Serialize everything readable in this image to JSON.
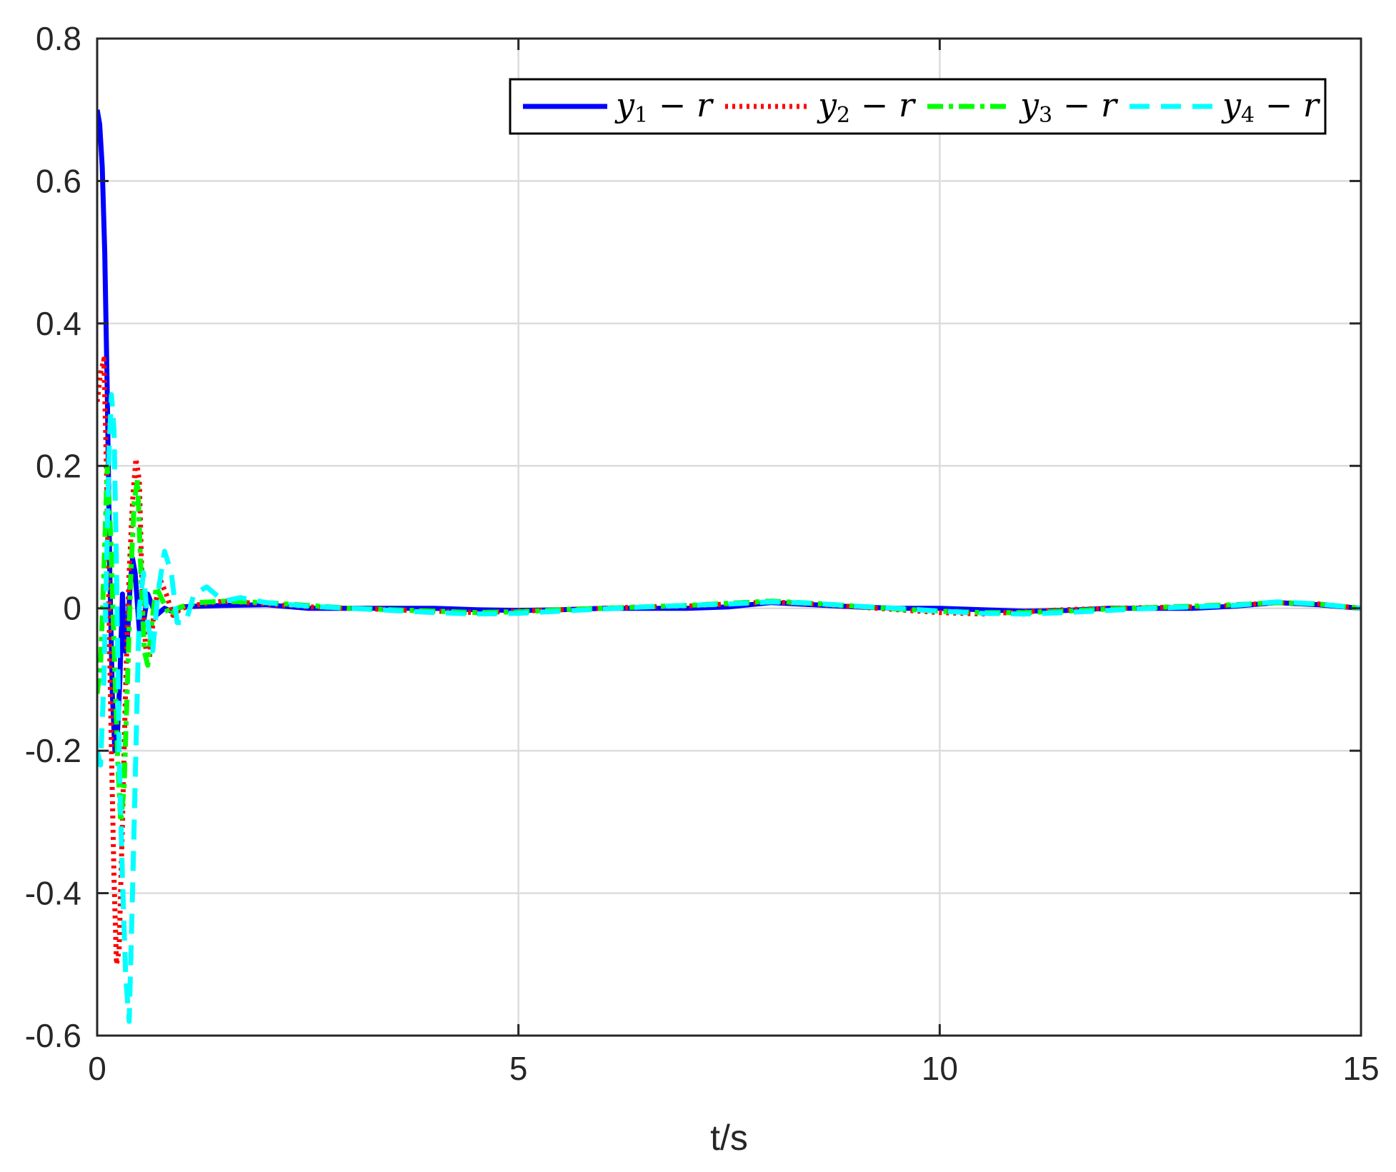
{
  "chart_data": {
    "type": "line",
    "title": "",
    "xlabel": "t/s",
    "ylabel": "",
    "xlim": [
      0,
      15
    ],
    "ylim": [
      -0.6,
      0.8
    ],
    "xticks": [
      0,
      5,
      10,
      15
    ],
    "xtick_labels": [
      "0",
      "5",
      "10",
      "15"
    ],
    "yticks": [
      -0.6,
      -0.4,
      -0.2,
      0,
      0.2,
      0.4,
      0.6,
      0.8
    ],
    "ytick_labels": [
      "-0.6",
      "-0.4",
      "-0.2",
      "0",
      "0.2",
      "0.4",
      "0.6",
      "0.8"
    ],
    "grid": true,
    "legend_position": "top-right",
    "legend_orientation": "horizontal",
    "series": [
      {
        "name": "y1 - r",
        "name_parts": {
          "var": "y",
          "sub": "1",
          "rest": " − r"
        },
        "color": "#0000ff",
        "style": "solid",
        "x": [
          0,
          0.03,
          0.06,
          0.09,
          0.12,
          0.15,
          0.18,
          0.21,
          0.24,
          0.27,
          0.3,
          0.33,
          0.36,
          0.39,
          0.42,
          0.45,
          0.5,
          0.55,
          0.6,
          0.7,
          0.8,
          0.9,
          1.0,
          1.2,
          1.5,
          2,
          2.5,
          3,
          3.5,
          4,
          4.5,
          5,
          5.5,
          6,
          6.5,
          7,
          7.5,
          8,
          8.5,
          9,
          9.5,
          10,
          10.5,
          11,
          11.5,
          12,
          12.5,
          13,
          13.5,
          14,
          14.5,
          15
        ],
        "y": [
          0.7,
          0.68,
          0.62,
          0.5,
          0.3,
          0.05,
          -0.12,
          -0.2,
          -0.18,
          -0.1,
          0.02,
          -0.06,
          -0.04,
          0.03,
          0.07,
          0.05,
          -0.03,
          -0.02,
          0.02,
          -0.01,
          0.0,
          -0.005,
          0.002,
          0.003,
          0.004,
          0.005,
          0.0,
          0.0,
          0.0,
          0.0,
          -0.002,
          -0.003,
          -0.002,
          0.0,
          0.0,
          0.0,
          0.002,
          0.008,
          0.005,
          0.002,
          0.0,
          0.0,
          -0.002,
          -0.004,
          -0.003,
          0.0,
          0.0,
          0.0,
          0.003,
          0.008,
          0.005,
          0.0
        ]
      },
      {
        "name": "y2 - r",
        "name_parts": {
          "var": "y",
          "sub": "2",
          "rest": " − r"
        },
        "color": "#ff0000",
        "style": "dotted",
        "x": [
          0,
          0.04,
          0.08,
          0.11,
          0.14,
          0.17,
          0.2,
          0.23,
          0.26,
          0.3,
          0.34,
          0.38,
          0.42,
          0.46,
          0.5,
          0.54,
          0.58,
          0.62,
          0.68,
          0.75,
          0.82,
          0.9,
          1.0,
          1.2,
          1.5,
          2,
          2.5,
          3,
          3.5,
          4,
          4.5,
          5,
          5.5,
          6,
          6.5,
          7,
          7.5,
          8,
          8.5,
          9,
          9.5,
          10,
          10.5,
          11,
          11.5,
          12,
          12.5,
          13,
          13.5,
          14,
          14.5,
          15
        ],
        "y": [
          0.29,
          0.33,
          0.35,
          0.2,
          0.0,
          -0.2,
          -0.38,
          -0.5,
          -0.48,
          -0.3,
          -0.1,
          0.05,
          0.15,
          0.21,
          0.18,
          0.0,
          -0.06,
          -0.07,
          0.0,
          0.04,
          0.02,
          -0.01,
          0.0,
          0.005,
          0.01,
          0.006,
          0.002,
          0.0,
          -0.002,
          -0.004,
          -0.006,
          -0.004,
          -0.002,
          0.0,
          0.002,
          0.003,
          0.006,
          0.009,
          0.006,
          0.002,
          -0.002,
          -0.006,
          -0.008,
          -0.005,
          -0.002,
          0.0,
          0.001,
          0.002,
          0.004,
          0.008,
          0.006,
          0.0
        ]
      },
      {
        "name": "y3 - r",
        "name_parts": {
          "var": "y",
          "sub": "3",
          "rest": " − r"
        },
        "color": "#00ff00",
        "style": "dashdot",
        "x": [
          0,
          0.04,
          0.08,
          0.12,
          0.16,
          0.2,
          0.24,
          0.28,
          0.32,
          0.36,
          0.4,
          0.44,
          0.48,
          0.52,
          0.56,
          0.6,
          0.65,
          0.7,
          0.78,
          0.86,
          0.95,
          1.05,
          1.2,
          1.5,
          2,
          2.5,
          3,
          3.5,
          4,
          4.5,
          5,
          5.5,
          6,
          6.5,
          7,
          7.5,
          8,
          8.5,
          9,
          9.5,
          10,
          10.5,
          11,
          11.5,
          12,
          12.5,
          13,
          13.5,
          14,
          14.5,
          15
        ],
        "y": [
          -0.12,
          -0.08,
          0.05,
          0.2,
          0.1,
          -0.05,
          -0.2,
          -0.3,
          -0.25,
          -0.1,
          0.05,
          0.15,
          0.18,
          0.05,
          -0.06,
          -0.08,
          -0.02,
          0.03,
          0.01,
          -0.01,
          0.0,
          0.004,
          0.008,
          0.01,
          0.008,
          0.004,
          0.0,
          -0.002,
          -0.004,
          -0.006,
          -0.005,
          -0.002,
          0.0,
          0.002,
          0.004,
          0.007,
          0.01,
          0.007,
          0.003,
          -0.001,
          -0.004,
          -0.006,
          -0.006,
          -0.004,
          -0.001,
          0.001,
          0.003,
          0.005,
          0.008,
          0.006,
          0.0
        ]
      },
      {
        "name": "y4 - r",
        "name_parts": {
          "var": "y",
          "sub": "4",
          "rest": " − r"
        },
        "color": "#00ffff",
        "style": "dashed",
        "x": [
          0,
          0.04,
          0.08,
          0.11,
          0.14,
          0.17,
          0.2,
          0.23,
          0.26,
          0.3,
          0.34,
          0.38,
          0.42,
          0.46,
          0.5,
          0.55,
          0.6,
          0.66,
          0.72,
          0.8,
          0.88,
          0.95,
          1.05,
          1.15,
          1.3,
          1.5,
          1.7,
          2,
          2.5,
          3,
          3.5,
          4,
          4.5,
          5,
          5.5,
          6,
          6.5,
          7,
          7.5,
          8,
          8.5,
          9,
          9.5,
          10,
          10.5,
          11,
          11.5,
          12,
          12.5,
          13,
          13.5,
          14,
          14.5,
          15
        ],
        "y": [
          -0.2,
          -0.22,
          -0.1,
          0.05,
          0.22,
          0.3,
          0.25,
          0.05,
          -0.2,
          -0.38,
          -0.52,
          -0.58,
          -0.4,
          -0.2,
          0.0,
          0.05,
          -0.02,
          -0.06,
          0.02,
          0.08,
          0.05,
          -0.02,
          -0.02,
          0.02,
          0.03,
          0.01,
          0.015,
          0.008,
          0.003,
          0.0,
          -0.003,
          -0.006,
          -0.008,
          -0.007,
          -0.004,
          -0.001,
          0.002,
          0.004,
          0.006,
          0.009,
          0.007,
          0.003,
          0.0,
          -0.004,
          -0.007,
          -0.008,
          -0.006,
          -0.003,
          0.0,
          0.002,
          0.004,
          0.009,
          0.006,
          0.0
        ]
      }
    ]
  }
}
